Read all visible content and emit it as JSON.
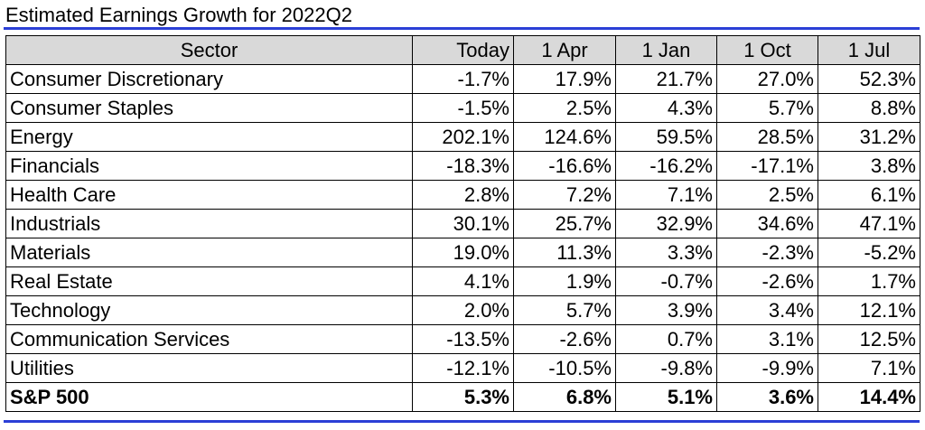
{
  "title": "Estimated Earnings Growth for 2022Q2",
  "chart_data": {
    "type": "table",
    "title": "Estimated Earnings Growth for 2022Q2",
    "columns": [
      "Sector",
      "Today",
      "1 Apr",
      "1 Jan",
      "1 Oct",
      "1 Jul"
    ],
    "rows": [
      {
        "sector": "Consumer Discretionary",
        "values": [
          "-1.7%",
          "17.9%",
          "21.7%",
          "27.0%",
          "52.3%"
        ]
      },
      {
        "sector": "Consumer Staples",
        "values": [
          "-1.5%",
          "2.5%",
          "4.3%",
          "5.7%",
          "8.8%"
        ]
      },
      {
        "sector": "Energy",
        "values": [
          "202.1%",
          "124.6%",
          "59.5%",
          "28.5%",
          "31.2%"
        ]
      },
      {
        "sector": "Financials",
        "values": [
          "-18.3%",
          "-16.6%",
          "-16.2%",
          "-17.1%",
          "3.8%"
        ]
      },
      {
        "sector": "Health Care",
        "values": [
          "2.8%",
          "7.2%",
          "7.1%",
          "2.5%",
          "6.1%"
        ]
      },
      {
        "sector": "Industrials",
        "values": [
          "30.1%",
          "25.7%",
          "32.9%",
          "34.6%",
          "47.1%"
        ]
      },
      {
        "sector": "Materials",
        "values": [
          "19.0%",
          "11.3%",
          "3.3%",
          "-2.3%",
          "-5.2%"
        ]
      },
      {
        "sector": "Real Estate",
        "values": [
          "4.1%",
          "1.9%",
          "-0.7%",
          "-2.6%",
          "1.7%"
        ]
      },
      {
        "sector": "Technology",
        "values": [
          "2.0%",
          "5.7%",
          "3.9%",
          "3.4%",
          "12.1%"
        ]
      },
      {
        "sector": "Communication Services",
        "values": [
          "-13.5%",
          "-2.6%",
          "0.7%",
          "3.1%",
          "12.5%"
        ]
      },
      {
        "sector": "Utilities",
        "values": [
          "-12.1%",
          "-10.5%",
          "-9.8%",
          "-9.9%",
          "7.1%"
        ]
      }
    ],
    "total": {
      "sector": "S&P 500",
      "values": [
        "5.3%",
        "6.8%",
        "5.1%",
        "3.6%",
        "14.4%"
      ]
    }
  }
}
